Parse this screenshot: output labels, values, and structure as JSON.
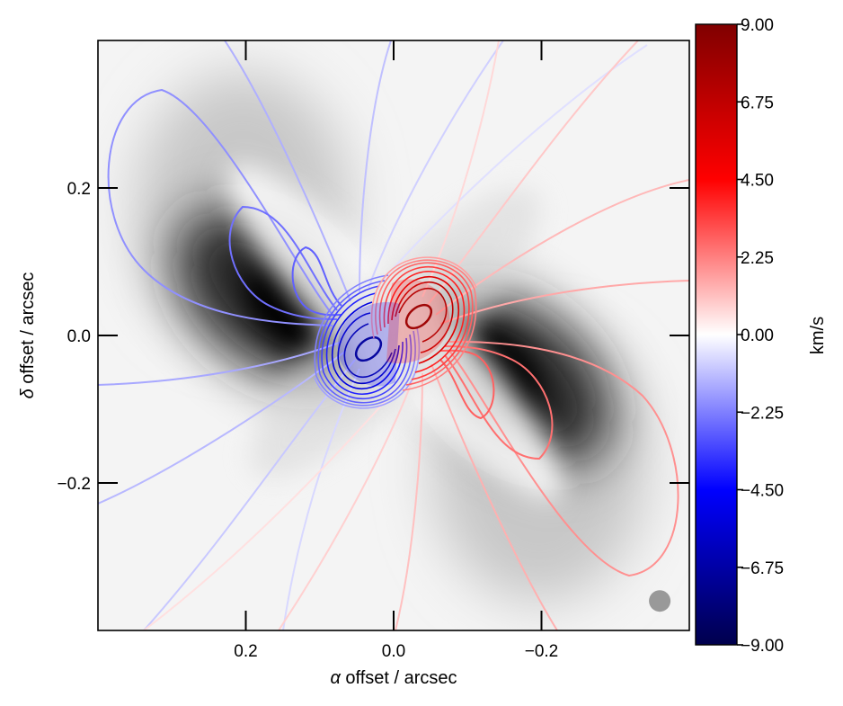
{
  "chart_data": {
    "type": "heatmap",
    "xlabel_symbol": "α",
    "xlabel_text": " offset / arcsec",
    "ylabel_symbol": "δ",
    "ylabel_text": " offset / arcsec",
    "xlim": [
      0.4,
      -0.4
    ],
    "ylim": [
      -0.4,
      0.4
    ],
    "x_ticks": [
      0.2,
      0.0,
      -0.2
    ],
    "x_tick_labels": [
      "0.2",
      "0.0",
      "−0.2"
    ],
    "y_ticks": [
      0.2,
      0.0,
      -0.2
    ],
    "y_tick_labels": [
      "0.2",
      "0.0",
      "−0.2"
    ],
    "grid": false,
    "background_image": "grayscale intensity map (black = high)",
    "contours": "line-of-sight velocity contours colored by velocity",
    "colorbar": {
      "label": "km/s",
      "range": [
        -9.0,
        9.0
      ],
      "ticks": [
        9.0,
        6.75,
        4.5,
        2.25,
        0.0,
        -2.25,
        -4.5,
        -6.75,
        -9.0
      ],
      "tick_labels": [
        "9.00",
        "6.75",
        "4.50",
        "2.25",
        "0.00",
        "−2.25",
        "−4.50",
        "−6.75",
        "−9.00"
      ],
      "colormap": "seismic",
      "colors": {
        "low": "#00004c",
        "mid_low": "#0000ff",
        "zero": "#ffffff",
        "mid_high": "#ff0000",
        "high": "#800000"
      }
    },
    "beam": {
      "x": -0.36,
      "y": -0.36,
      "color": "#999999"
    }
  }
}
